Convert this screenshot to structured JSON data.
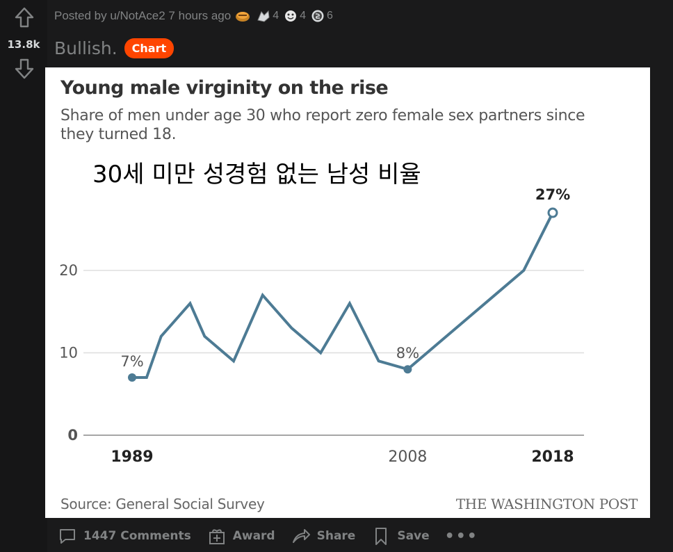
{
  "vote": {
    "score": "13.8k"
  },
  "post": {
    "meta": "Posted by u/NotAce2 7 hours ago",
    "awards": [
      {
        "icon": "gold-award-icon",
        "count": ""
      },
      {
        "icon": "helpful-award-icon",
        "count": "4"
      },
      {
        "icon": "silver-award-icon",
        "count": "4"
      },
      {
        "icon": "wholesome-award-icon",
        "count": "6"
      }
    ],
    "title": "Bullish.",
    "flair": "Chart"
  },
  "image": {
    "overlay_text": "30세 미만 성경험 없는 남성 비율",
    "source": "Source: General Social Survey",
    "brand": "THE WASHINGTON POST"
  },
  "chart_data": {
    "type": "line",
    "title": "Young male virginity on the rise",
    "subtitle": "Share of men under age 30 who report zero female sex partners since they turned 18.",
    "x": [
      1989,
      1990,
      1991,
      1993,
      1994,
      1996,
      1998,
      2000,
      2002,
      2004,
      2006,
      2008,
      2010,
      2012,
      2014,
      2016,
      2018
    ],
    "values": [
      7,
      7,
      12,
      16,
      12,
      9,
      17,
      13,
      10,
      16,
      9,
      8,
      11,
      14,
      17,
      20,
      27
    ],
    "ylim": [
      0,
      30
    ],
    "yticks": [
      "0",
      "10",
      "20"
    ],
    "xticks": [
      {
        "x": 1989,
        "label": "1989",
        "bold": true
      },
      {
        "x": 2008,
        "label": "2008",
        "bold": false
      },
      {
        "x": 2018,
        "label": "2018",
        "bold": true
      }
    ],
    "annotations": [
      {
        "x": 1989,
        "y": 7,
        "label": "7%",
        "style": "dot"
      },
      {
        "x": 2008,
        "y": 8,
        "label": "8%",
        "style": "dot"
      },
      {
        "x": 2018,
        "y": 27,
        "label": "27%",
        "style": "open"
      }
    ],
    "line_color": "#4d7b94",
    "grid": true
  },
  "actions": {
    "comments": "1447 Comments",
    "award": "Award",
    "share": "Share",
    "save": "Save",
    "more": "•••"
  }
}
